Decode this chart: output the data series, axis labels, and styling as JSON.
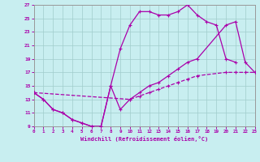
{
  "xlabel": "Windchill (Refroidissement éolien,°C)",
  "xlim": [
    0,
    23
  ],
  "ylim": [
    9,
    27
  ],
  "xticks": [
    0,
    1,
    2,
    3,
    4,
    5,
    6,
    7,
    8,
    9,
    10,
    11,
    12,
    13,
    14,
    15,
    16,
    17,
    18,
    19,
    20,
    21,
    22,
    23
  ],
  "yticks": [
    9,
    11,
    13,
    15,
    17,
    19,
    21,
    23,
    25,
    27
  ],
  "bg_color": "#c8eef0",
  "grid_color": "#a0cccc",
  "line_color": "#aa00aa",
  "line1_x": [
    0,
    1,
    2,
    3,
    4,
    5,
    6,
    7,
    8,
    9,
    10,
    11,
    12,
    13,
    14,
    15,
    16,
    17,
    18,
    19,
    20,
    21
  ],
  "line1_y": [
    14.0,
    13.0,
    11.5,
    11.0,
    10.0,
    9.5,
    9.0,
    9.0,
    15.0,
    20.5,
    24.0,
    26.0,
    26.0,
    25.5,
    25.5,
    26.0,
    27.0,
    25.5,
    24.5,
    24.0,
    19.0,
    18.5
  ],
  "line2_x": [
    0,
    1,
    2,
    3,
    4,
    5,
    6,
    7,
    8,
    9,
    10,
    11,
    12,
    13,
    14,
    15,
    16,
    17,
    20,
    21,
    22,
    23
  ],
  "line2_y": [
    14.0,
    13.0,
    11.5,
    11.0,
    10.0,
    9.5,
    9.0,
    9.0,
    15.0,
    11.5,
    13.0,
    14.0,
    15.0,
    15.5,
    16.5,
    17.5,
    18.5,
    19.0,
    24.0,
    24.5,
    18.5,
    17.0
  ],
  "line3_x": [
    0,
    10,
    11,
    12,
    13,
    14,
    15,
    16,
    17,
    20,
    21,
    22,
    23
  ],
  "line3_y": [
    14.0,
    13.0,
    13.5,
    14.0,
    14.5,
    15.0,
    15.5,
    16.0,
    16.5,
    17.0,
    17.0,
    17.0,
    17.0
  ]
}
